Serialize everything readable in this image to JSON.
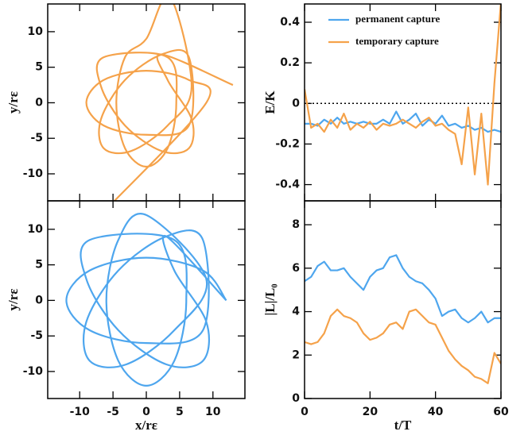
{
  "chart_data": [
    {
      "type": "line",
      "smooth": true,
      "show_xtick_labels": false,
      "xlim": [
        -14.8,
        14.8
      ],
      "ylim": [
        -13.8,
        13.9
      ],
      "xticks": [
        -10,
        -5,
        0,
        5,
        10
      ],
      "yticks": [
        -10,
        -5,
        0,
        5,
        10
      ],
      "ylabel": "y/rε",
      "series": [
        {
          "color": "#f5a24a",
          "x": [
            -5.5,
            9,
            6.4,
            0,
            -6.4,
            -9,
            -6.4,
            0,
            6.4,
            6.4,
            2.3,
            -3.2,
            -6.8,
            -6.4,
            -2.3,
            3.2,
            6.8,
            3.5,
            0,
            -3.2,
            -4.5,
            -3.2,
            0,
            3.2,
            4.5,
            3.2,
            -6.4,
            -6.8,
            -3.2,
            2.3,
            6.4,
            6.8,
            3.2,
            2.3,
            13
          ],
          "values": [
            -14.5,
            0,
            3.2,
            4.5,
            3.2,
            0,
            -3.2,
            -4.5,
            -3.2,
            6.4,
            6.8,
            3.2,
            -2.3,
            -6.4,
            -6.8,
            -3.2,
            2.3,
            15,
            9,
            6.4,
            0,
            -6.4,
            -9,
            -6.4,
            0,
            6.4,
            6.4,
            2.3,
            -3.2,
            -6.8,
            -6.4,
            -2.3,
            3.2,
            6.8,
            2.5
          ]
        }
      ]
    },
    {
      "type": "line",
      "smooth": false,
      "show_xtick_labels": false,
      "xlim": [
        0,
        60
      ],
      "ylim": [
        -0.48,
        0.49
      ],
      "xticks": [
        0,
        20,
        40,
        60
      ],
      "yticks": [
        -0.4,
        -0.2,
        0,
        0.2,
        0.4
      ],
      "ylabel": "E/K",
      "hline": 0,
      "legend": "upper center",
      "x": [
        0,
        2,
        4,
        6,
        8,
        10,
        12,
        14,
        16,
        18,
        20,
        22,
        24,
        26,
        28,
        30,
        32,
        34,
        36,
        38,
        40,
        42,
        44,
        46,
        48,
        50,
        52,
        54,
        56,
        58,
        60
      ],
      "series": [
        {
          "name": "permanent capture",
          "color": "#4ea6ee",
          "values": [
            -0.1,
            -0.1,
            -0.11,
            -0.08,
            -0.1,
            -0.07,
            -0.1,
            -0.09,
            -0.1,
            -0.09,
            -0.1,
            -0.1,
            -0.08,
            -0.1,
            -0.04,
            -0.1,
            -0.08,
            -0.05,
            -0.11,
            -0.08,
            -0.1,
            -0.06,
            -0.11,
            -0.1,
            -0.12,
            -0.11,
            -0.13,
            -0.12,
            -0.14,
            -0.13,
            -0.14
          ]
        },
        {
          "name": "temporary capture",
          "color": "#f5a24a",
          "values": [
            0.07,
            -0.12,
            -0.1,
            -0.14,
            -0.08,
            -0.12,
            -0.05,
            -0.13,
            -0.1,
            -0.12,
            -0.09,
            -0.13,
            -0.1,
            -0.11,
            -0.1,
            -0.08,
            -0.1,
            -0.12,
            -0.09,
            -0.07,
            -0.11,
            -0.1,
            -0.13,
            -0.15,
            -0.3,
            -0.02,
            -0.35,
            -0.05,
            -0.4,
            0.1,
            0.5
          ]
        }
      ]
    },
    {
      "type": "line",
      "smooth": true,
      "show_xtick_labels": true,
      "xlim": [
        -14.8,
        14.8
      ],
      "ylim": [
        -13.8,
        14
      ],
      "xticks": [
        -10,
        -5,
        0,
        5,
        10
      ],
      "yticks": [
        -10,
        -5,
        0,
        5,
        10
      ],
      "xlabel": "x/rε",
      "ylabel": "y/rε",
      "series": [
        {
          "color": "#4ea6ee",
          "x": [
            12,
            8.5,
            0,
            -8.5,
            -12,
            -8.5,
            0,
            8.5,
            8.5,
            3.0,
            -4.2,
            -9.0,
            -8.5,
            -3.0,
            4.2,
            9.0,
            0,
            -4.2,
            -6,
            -4.2,
            0,
            4.2,
            6,
            4.2,
            -8.5,
            -9.0,
            -4.2,
            3.0,
            8.5,
            9.0,
            4.2,
            3.0,
            12
          ],
          "values": [
            0,
            4.2,
            6,
            4.2,
            0,
            -4.2,
            -6,
            -4.2,
            8.5,
            9.0,
            4.2,
            -3.0,
            -8.5,
            -9.0,
            -4.2,
            3.0,
            12,
            8.5,
            0,
            -8.5,
            -12,
            -8.5,
            0,
            8.5,
            8.5,
            3.0,
            -4.2,
            -9.0,
            -8.5,
            -3.0,
            4.2,
            9.0,
            0
          ]
        }
      ]
    },
    {
      "type": "line",
      "smooth": false,
      "show_xtick_labels": true,
      "xlim": [
        0,
        60
      ],
      "ylim": [
        0,
        9.1
      ],
      "xticks": [
        0,
        20,
        40,
        60
      ],
      "yticks": [
        0,
        2,
        4,
        6,
        8
      ],
      "xlabel": "t/T",
      "ylabel": "|L|/L₀",
      "x": [
        0,
        2,
        4,
        6,
        8,
        10,
        12,
        14,
        16,
        18,
        20,
        22,
        24,
        26,
        28,
        30,
        32,
        34,
        36,
        38,
        40,
        42,
        44,
        46,
        48,
        50,
        52,
        54,
        56,
        58,
        60
      ],
      "series": [
        {
          "color": "#4ea6ee",
          "values": [
            5.4,
            5.6,
            6.1,
            6.3,
            5.9,
            5.9,
            6.0,
            5.6,
            5.3,
            5.0,
            5.6,
            5.9,
            6.0,
            6.5,
            6.6,
            6.0,
            5.6,
            5.4,
            5.3,
            5.0,
            4.6,
            3.8,
            4.0,
            4.1,
            3.7,
            3.5,
            3.7,
            4.0,
            3.5,
            3.7,
            3.7
          ]
        },
        {
          "color": "#f5a24a",
          "values": [
            2.6,
            2.5,
            2.6,
            3.0,
            3.8,
            4.1,
            3.8,
            3.7,
            3.5,
            3.0,
            2.7,
            2.8,
            3.0,
            3.4,
            3.5,
            3.2,
            4.0,
            4.1,
            3.8,
            3.5,
            3.4,
            2.8,
            2.2,
            1.8,
            1.5,
            1.3,
            1.0,
            0.9,
            0.7,
            2.1,
            1.6
          ]
        }
      ]
    }
  ]
}
